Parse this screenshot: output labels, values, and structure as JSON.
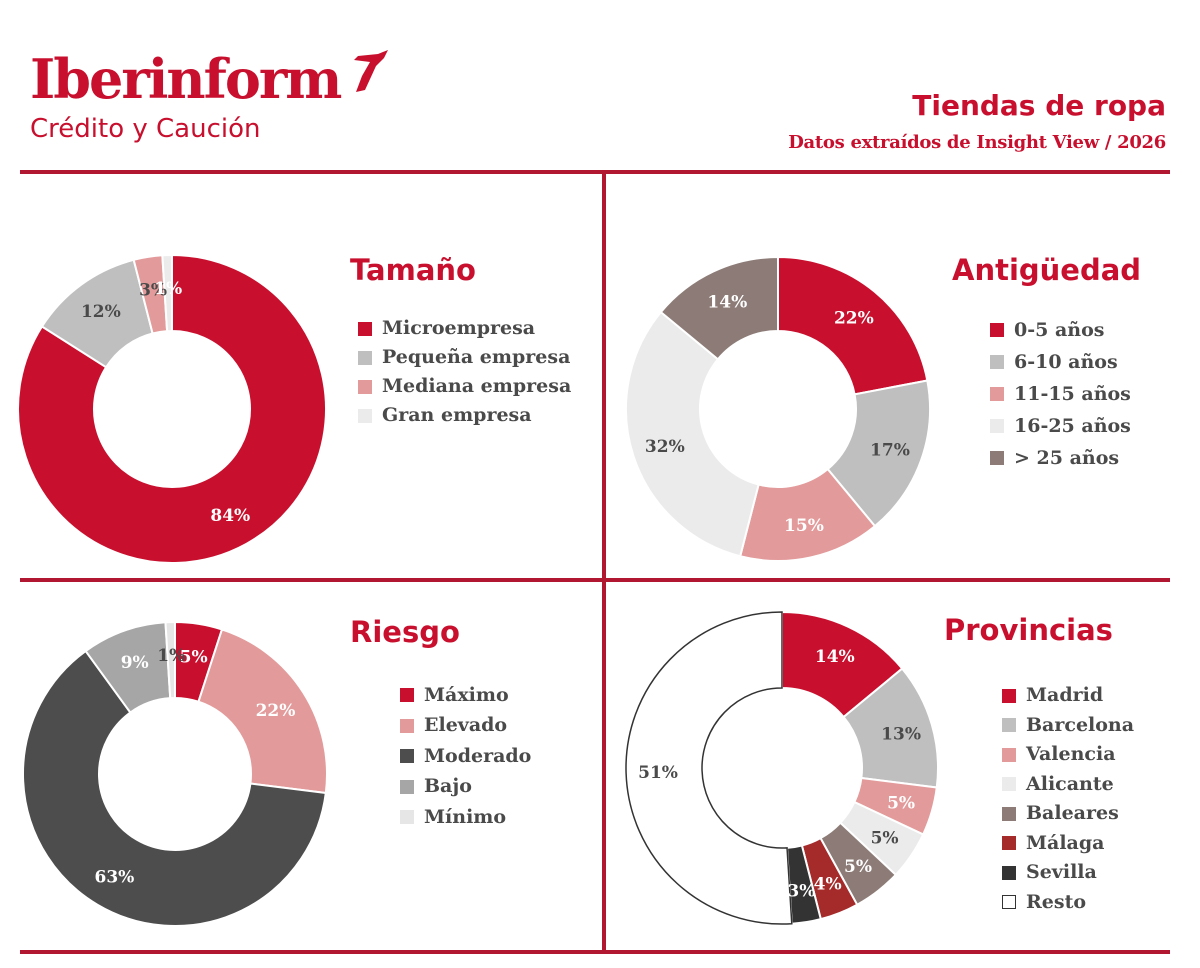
{
  "brand": {
    "name": "Iberinform",
    "subtitle": "Crédito y Caución",
    "color": "#c8102e"
  },
  "header": {
    "title": "Tiendas de ropa",
    "subtitle": "Datos extraídos de Insight View / 2026"
  },
  "chart_data": [
    {
      "type": "pie",
      "title": "Tamaño",
      "categories": [
        "Microempresa",
        "Pequeña empresa",
        "Mediana empresa",
        "Gran empresa"
      ],
      "values": [
        84,
        12,
        3,
        1
      ],
      "labels": [
        "84%",
        "12%",
        "3%",
        "1%"
      ],
      "colors": [
        "#c8102e",
        "#bfbfbf",
        "#e39a9a",
        "#ebebeb"
      ],
      "label_colors": [
        "#ffffff",
        "#4a4a4a",
        "#4a4a4a",
        "#ffffff"
      ],
      "legend": "right"
    },
    {
      "type": "pie",
      "title": "Antigüedad",
      "categories": [
        "0-5 años",
        "6-10 años",
        "11-15 años",
        "16-25 años",
        "> 25 años"
      ],
      "values": [
        22,
        17,
        15,
        32,
        14
      ],
      "labels": [
        "22%",
        "17%",
        "15%",
        "32%",
        "14%"
      ],
      "colors": [
        "#c8102e",
        "#bfbfbf",
        "#e39a9a",
        "#ebebeb",
        "#8c7b76"
      ],
      "label_colors": [
        "#ffffff",
        "#4a4a4a",
        "#ffffff",
        "#4a4a4a",
        "#ffffff"
      ],
      "legend": "right"
    },
    {
      "type": "pie",
      "title": "Riesgo",
      "categories": [
        "Máximo",
        "Elevado",
        "Moderado",
        "Bajo",
        "Mínimo"
      ],
      "values": [
        5,
        22,
        63,
        9,
        1
      ],
      "labels": [
        "5%",
        "22%",
        "63%",
        "9%",
        "1%"
      ],
      "colors": [
        "#c8102e",
        "#e39a9a",
        "#4d4d4d",
        "#a6a6a6",
        "#e6e6e6"
      ],
      "label_colors": [
        "#ffffff",
        "#ffffff",
        "#ffffff",
        "#ffffff",
        "#4a4a4a"
      ],
      "legend": "right"
    },
    {
      "type": "pie",
      "title": "Provincias",
      "categories": [
        "Madrid",
        "Barcelona",
        "Valencia",
        "Alicante",
        "Baleares",
        "Málaga",
        "Sevilla",
        "Resto"
      ],
      "values": [
        14,
        13,
        5,
        5,
        5,
        4,
        3,
        51
      ],
      "labels": [
        "14%",
        "13%",
        "5%",
        "5%",
        "5%",
        "4%",
        "3%",
        "51%"
      ],
      "colors": [
        "#c8102e",
        "#bfbfbf",
        "#e39a9a",
        "#ebebeb",
        "#8c7b76",
        "#a52a2a",
        "#333333",
        "#ffffff"
      ],
      "label_colors": [
        "#ffffff",
        "#4a4a4a",
        "#ffffff",
        "#4a4a4a",
        "#ffffff",
        "#ffffff",
        "#ffffff",
        "#4a4a4a"
      ],
      "legend": "right"
    }
  ]
}
